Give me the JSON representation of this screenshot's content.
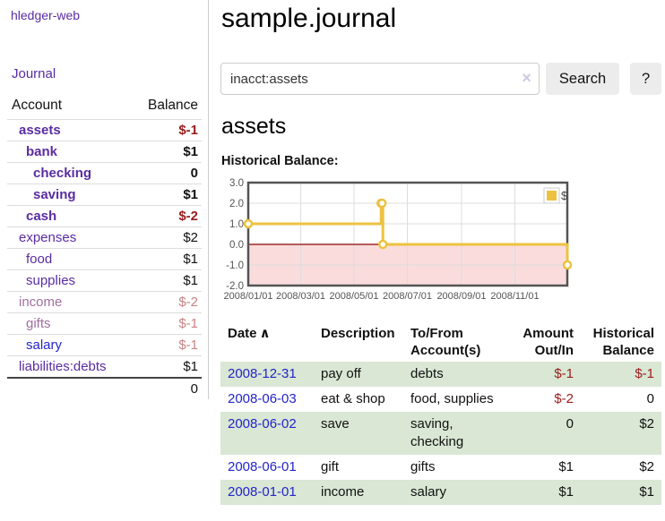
{
  "app": {
    "brand": "hledger-web"
  },
  "sidebar": {
    "journal_link": "Journal",
    "accounts": {
      "col_account": "Account",
      "col_balance": "Balance",
      "rows": [
        {
          "name": "assets",
          "balance": "$-1",
          "indent": 1,
          "emph": true,
          "name_tone": "purple",
          "bal_tone": "neg"
        },
        {
          "name": "bank",
          "balance": "$1",
          "indent": 2,
          "emph": true,
          "name_tone": "purple",
          "bal_tone": "pos"
        },
        {
          "name": "checking",
          "balance": "0",
          "indent": 3,
          "emph": true,
          "name_tone": "purple",
          "bal_tone": "pos"
        },
        {
          "name": "saving",
          "balance": "$1",
          "indent": 3,
          "emph": true,
          "name_tone": "purple",
          "bal_tone": "pos"
        },
        {
          "name": "cash",
          "balance": "$-2",
          "indent": 2,
          "emph": true,
          "name_tone": "purple",
          "bal_tone": "neg"
        },
        {
          "name": "expenses",
          "balance": "$2",
          "indent": 1,
          "emph": false,
          "name_tone": "purple",
          "bal_tone": "pos"
        },
        {
          "name": "food",
          "balance": "$1",
          "indent": 2,
          "emph": false,
          "name_tone": "purple",
          "bal_tone": "pos"
        },
        {
          "name": "supplies",
          "balance": "$1",
          "indent": 2,
          "emph": false,
          "name_tone": "purple",
          "bal_tone": "pos"
        },
        {
          "name": "income",
          "balance": "$-2",
          "indent": 1,
          "emph": false,
          "name_tone": "muted",
          "bal_tone": "neg-muted"
        },
        {
          "name": "gifts",
          "balance": "$-1",
          "indent": 2,
          "emph": false,
          "name_tone": "muted",
          "bal_tone": "neg-muted"
        },
        {
          "name": "salary",
          "balance": "$-1",
          "indent": 2,
          "emph": false,
          "name_tone": "blue",
          "bal_tone": "neg-muted"
        },
        {
          "name": "liabilities:debts",
          "balance": "$1",
          "indent": 1,
          "emph": false,
          "name_tone": "purple",
          "bal_tone": "pos"
        }
      ],
      "total": "0"
    }
  },
  "main": {
    "title": "sample.journal",
    "search": {
      "value": "inacct:assets",
      "clear_icon": "×",
      "search_button": "Search",
      "help_button": "?"
    },
    "account_title": "assets",
    "chart_title": "Historical Balance:"
  },
  "chart_data": {
    "type": "line",
    "style": "steps-with-markers",
    "title": "Historical Balance:",
    "series": [
      {
        "name": "$",
        "color": "#edc240",
        "points": [
          [
            "2008-01-01",
            1
          ],
          [
            "2008-06-01",
            2
          ],
          [
            "2008-06-02",
            2
          ],
          [
            "2008-06-03",
            0
          ],
          [
            "2008-12-31",
            -1
          ]
        ]
      }
    ],
    "xlim": [
      "2008-01-01",
      "2008-12-31"
    ],
    "ylim": [
      -2,
      3
    ],
    "x_ticks": [
      "2008/01/01",
      "2008/03/01",
      "2008/05/01",
      "2008/07/01",
      "2008/09/01",
      "2008/11/01"
    ],
    "y_ticks": [
      "3.0",
      "2.0",
      "1.0",
      "0.0",
      "-1.0",
      "-2.0"
    ],
    "legend": {
      "label": "$",
      "position": "top-right"
    },
    "grid": true,
    "grid_color": "#dddddd",
    "border_color": "#545454",
    "tick_color": "#545454",
    "zero_line_color": "#8b0000",
    "negative_region_color": "#fbdcdc"
  },
  "register": {
    "headers": {
      "date": "Date",
      "sort": "∧",
      "description": "Description",
      "accounts": "To/From Account(s)",
      "amount": "Amount Out/In",
      "balance": "Historical Balance"
    },
    "rows": [
      {
        "date": "2008-12-31",
        "description": "pay off",
        "accounts": "debts",
        "amount": "$-1",
        "balance": "$-1",
        "amount_neg": true,
        "balance_neg": true
      },
      {
        "date": "2008-06-03",
        "description": "eat & shop",
        "accounts": "food, supplies",
        "amount": "$-2",
        "balance": "0",
        "amount_neg": true,
        "balance_neg": false
      },
      {
        "date": "2008-06-02",
        "description": "save",
        "accounts": "saving, checking",
        "amount": "0",
        "balance": "$2",
        "amount_neg": false,
        "balance_neg": false
      },
      {
        "date": "2008-06-01",
        "description": "gift",
        "accounts": "gifts",
        "amount": "$1",
        "balance": "$2",
        "amount_neg": false,
        "balance_neg": false
      },
      {
        "date": "2008-01-01",
        "description": "income",
        "accounts": "salary",
        "amount": "$1",
        "balance": "$1",
        "amount_neg": false,
        "balance_neg": false
      }
    ]
  }
}
